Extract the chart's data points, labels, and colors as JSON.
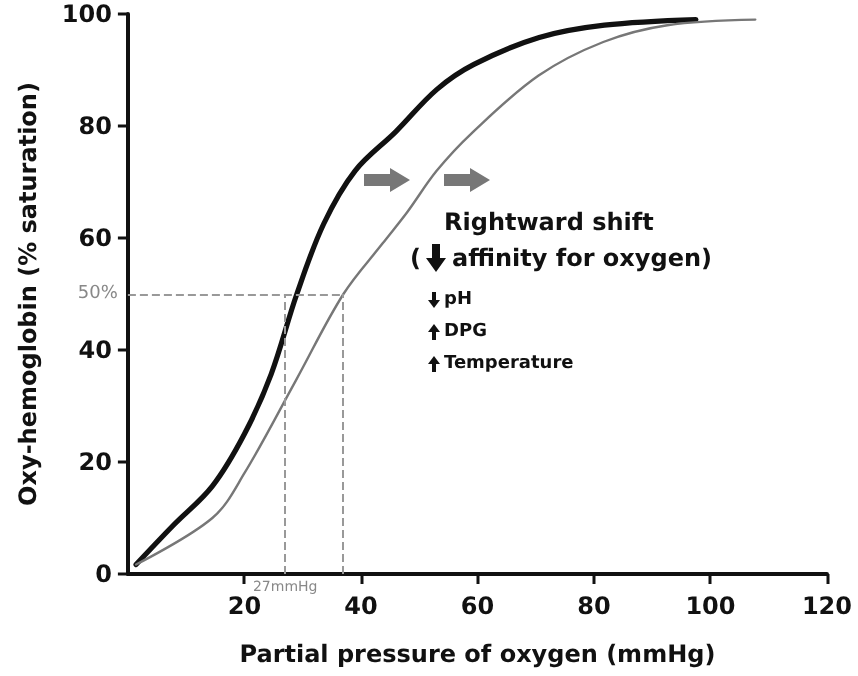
{
  "chart_data": {
    "type": "line",
    "xlabel": "Partial pressure of oxygen (mmHg)",
    "ylabel": "Oxy-hemoglobin (% saturation)",
    "xlim": [
      0,
      120
    ],
    "xticks": [
      20,
      40,
      60,
      80,
      100,
      120
    ],
    "ylim": [
      0,
      100
    ],
    "yticks": [
      0,
      20,
      40,
      60,
      80,
      100
    ],
    "grid": false,
    "marker": "none",
    "line_style": "solid",
    "series": [
      {
        "color": "#111111",
        "x": [
          1.4,
          7.8,
          14.5,
          20,
          24.6,
          29,
          33.6,
          39,
          46,
          53,
          59.4,
          70.6,
          81.8,
          97.5
        ],
        "values": [
          1.7,
          8.7,
          15.7,
          25,
          35.7,
          50,
          62.5,
          72,
          79,
          86.5,
          91,
          95.8,
          98,
          99
        ]
      },
      {
        "color": "#777777",
        "x": [
          1.4,
          14.5,
          20,
          28.8,
          37,
          43.7,
          48,
          53,
          59,
          70.5,
          81.6,
          92.6,
          107.7
        ],
        "values": [
          1.7,
          10,
          18,
          34.5,
          50,
          59,
          64.7,
          72,
          78.7,
          89,
          95,
          98,
          99
        ]
      }
    ],
    "ref_lines": [
      {
        "axis": "y",
        "value": 50,
        "label": "50%",
        "color": "#999999",
        "line_style": "dashed"
      },
      {
        "axis": "x",
        "value": 27,
        "label": "27mmHg",
        "color": "#999999",
        "line_style": "dashed"
      },
      {
        "axis": "x",
        "value": 37,
        "color": "#999999",
        "line_style": "dashed"
      }
    ],
    "annotations": [
      "Rightward shift",
      "(",
      "affinity for oxygen)",
      "pH",
      "DPG",
      "Temperature"
    ]
  }
}
